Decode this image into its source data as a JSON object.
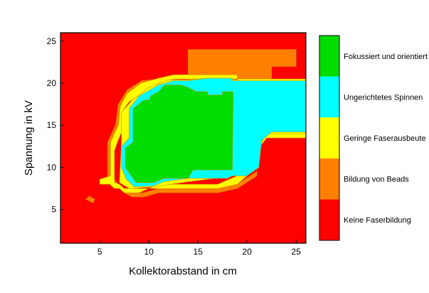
{
  "chart_data": {
    "type": "heatmap",
    "xlabel": "Kollektorabstand in cm",
    "ylabel": "Spannung in kV",
    "xlim": [
      1,
      26
    ],
    "ylim": [
      1,
      26
    ],
    "xticks": [
      5,
      10,
      15,
      20,
      25
    ],
    "yticks": [
      5,
      10,
      15,
      20,
      25
    ],
    "grid": false,
    "legend_position": "right",
    "legend": [
      {
        "label": "Fokussiert und orientiert",
        "color": "#00dd00"
      },
      {
        "label": "Ungerichtetes Spinnen",
        "color": "#00ffff"
      },
      {
        "label": "Geringe Faserausbeute",
        "color": "#ffff00"
      },
      {
        "label": "Bildung von Beads",
        "color": "#ff8000"
      },
      {
        "label": "Keine Faserbildung",
        "color": "#ff0000"
      }
    ],
    "background_class": "Keine Faserbildung",
    "regions": [
      {
        "class": "Bildung von Beads",
        "polygon": [
          [
            14,
            24
          ],
          [
            25,
            24
          ],
          [
            25,
            22
          ],
          [
            22.5,
            22
          ],
          [
            22.5,
            20.5
          ],
          [
            14,
            20.5
          ]
        ]
      },
      {
        "class": "Geringe Faserausbeute",
        "polygon": [
          [
            19,
            20.5
          ],
          [
            26,
            20.5
          ],
          [
            26,
            13.5
          ],
          [
            22,
            13.5
          ],
          [
            21,
            12
          ],
          [
            19,
            9
          ]
        ]
      },
      {
        "class": "Bildung von Beads",
        "polygon": [
          [
            6.3,
            8.2
          ],
          [
            7.5,
            7
          ],
          [
            8.3,
            6.5
          ],
          [
            9.5,
            6.5
          ],
          [
            11,
            7
          ],
          [
            14,
            7
          ],
          [
            17,
            7
          ],
          [
            19,
            7.5
          ],
          [
            21,
            9
          ],
          [
            21,
            12
          ],
          [
            22,
            14
          ],
          [
            26,
            14
          ],
          [
            26,
            9.5
          ],
          [
            26,
            9.5
          ],
          [
            26,
            14
          ],
          [
            22,
            14
          ],
          [
            21,
            12.5
          ],
          [
            21,
            9.5
          ],
          [
            19,
            8
          ],
          [
            17,
            7.5
          ],
          [
            14,
            7.5
          ],
          [
            11,
            7.5
          ],
          [
            9.5,
            7
          ],
          [
            8.3,
            7
          ],
          [
            7.2,
            7.6
          ],
          [
            6.5,
            8.5
          ],
          [
            6.3,
            12
          ],
          [
            6.3,
            13
          ],
          [
            7,
            15
          ],
          [
            7.2,
            17
          ],
          [
            8,
            18
          ],
          [
            9.5,
            19.5
          ],
          [
            11,
            20
          ],
          [
            13,
            20.5
          ],
          [
            14,
            20.5
          ],
          [
            14,
            21
          ],
          [
            13,
            21
          ],
          [
            11,
            20.5
          ],
          [
            9.3,
            20.3
          ],
          [
            7.8,
            19.2
          ],
          [
            6.9,
            17.5
          ],
          [
            6.6,
            15
          ],
          [
            5.8,
            13
          ],
          [
            5.8,
            11
          ],
          [
            5.8,
            8.5
          ]
        ]
      },
      {
        "class": "Geringe Faserausbeute",
        "polygon": [
          [
            5,
            8
          ],
          [
            6,
            8
          ],
          [
            6.5,
            7.5
          ],
          [
            7,
            7.5
          ],
          [
            7.5,
            7
          ],
          [
            9,
            7
          ],
          [
            10,
            7.5
          ],
          [
            11,
            7.5
          ],
          [
            14,
            7.5
          ],
          [
            17,
            7.5
          ],
          [
            19,
            8
          ],
          [
            20,
            9
          ],
          [
            20,
            9
          ],
          [
            19,
            9
          ],
          [
            17,
            8
          ],
          [
            14,
            8
          ],
          [
            11,
            8
          ],
          [
            10,
            7.5
          ],
          [
            9,
            7.5
          ],
          [
            7.5,
            7.5
          ],
          [
            7,
            8
          ],
          [
            6.5,
            8.2
          ],
          [
            6.5,
            12
          ],
          [
            6.8,
            13
          ],
          [
            7.5,
            15
          ],
          [
            7.5,
            17
          ],
          [
            8,
            17.8
          ],
          [
            9.5,
            19
          ],
          [
            11,
            20
          ],
          [
            12.5,
            20.5
          ],
          [
            14,
            20.5
          ],
          [
            19,
            20.5
          ],
          [
            19,
            21
          ],
          [
            14,
            21
          ],
          [
            12.5,
            21
          ],
          [
            11,
            20.6
          ],
          [
            9.2,
            20
          ],
          [
            7.8,
            18.8
          ],
          [
            7.1,
            17.3
          ],
          [
            6.9,
            15
          ],
          [
            6.1,
            13
          ],
          [
            6.1,
            9
          ],
          [
            5,
            8.6
          ]
        ]
      },
      {
        "class": "Geringe Faserausbeute",
        "polygon": [
          [
            7.2,
            13
          ],
          [
            7.2,
            16.5
          ],
          [
            8.3,
            18
          ],
          [
            10,
            19.5
          ],
          [
            12,
            20.4
          ],
          [
            14,
            20.4
          ],
          [
            16,
            20.6
          ],
          [
            19,
            20.4
          ],
          [
            19,
            19
          ],
          [
            18.7,
            9
          ],
          [
            14,
            8.3
          ],
          [
            10.5,
            7.7
          ],
          [
            8,
            7.5
          ],
          [
            7,
            8.2
          ]
        ]
      },
      {
        "class": "Ungerichtetes Spinnen",
        "polygon": [
          [
            18.5,
            20.3
          ],
          [
            26,
            20.3
          ],
          [
            26,
            14.2
          ],
          [
            22.5,
            14.2
          ],
          [
            21.5,
            13.2
          ],
          [
            21.2,
            10
          ],
          [
            20,
            9
          ],
          [
            18.5,
            9
          ],
          [
            18,
            8.7
          ],
          [
            14,
            8.7
          ],
          [
            11.5,
            8.3
          ],
          [
            10.5,
            7.8
          ],
          [
            8.5,
            7.7
          ],
          [
            7.7,
            8.6
          ],
          [
            7.2,
            10
          ],
          [
            7.2,
            12.5
          ],
          [
            8,
            13.5
          ],
          [
            8,
            17
          ],
          [
            9,
            18.5
          ],
          [
            11,
            19.8
          ],
          [
            12.5,
            20.3
          ],
          [
            14,
            20.3
          ],
          [
            16,
            20.6
          ],
          [
            18.5,
            20.6
          ]
        ]
      },
      {
        "class": "Fokussiert und orientiert",
        "polygon": [
          [
            7.6,
            12
          ],
          [
            7.6,
            10
          ],
          [
            8.7,
            8.2
          ],
          [
            10.5,
            8.2
          ],
          [
            11.5,
            8.7
          ],
          [
            14,
            8.7
          ],
          [
            14.5,
            9.7
          ],
          [
            18.5,
            9.7
          ],
          [
            18.6,
            19
          ],
          [
            17.5,
            19
          ],
          [
            17.5,
            18.6
          ],
          [
            16,
            18.6
          ],
          [
            16,
            19
          ],
          [
            14.8,
            19
          ],
          [
            14,
            19.5
          ],
          [
            13.2,
            19.8
          ],
          [
            11.6,
            19.8
          ],
          [
            11,
            19
          ],
          [
            10.2,
            18.5
          ],
          [
            10,
            18
          ],
          [
            9.5,
            18
          ],
          [
            8.4,
            17
          ],
          [
            8.4,
            13
          ],
          [
            7.6,
            12.3
          ]
        ]
      },
      {
        "class": "Bildung von Beads",
        "polygon": [
          [
            3.6,
            6.2
          ],
          [
            4.3,
            5.8
          ],
          [
            4.5,
            6.2
          ],
          [
            3.9,
            6.6
          ]
        ]
      }
    ]
  }
}
